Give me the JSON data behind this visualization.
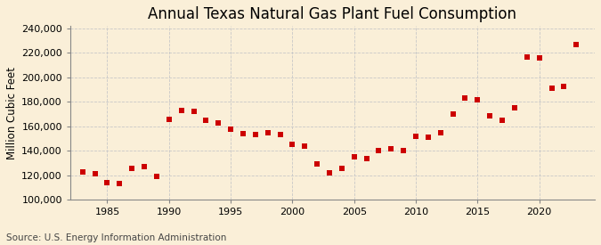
{
  "title": "Annual Texas Natural Gas Plant Fuel Consumption",
  "ylabel": "Million Cubic Feet",
  "source": "Source: U.S. Energy Information Administration",
  "background_color": "#faefd8",
  "plot_bg_color": "#faefd8",
  "marker_color": "#cc0000",
  "marker": "s",
  "marker_size": 4,
  "xlim": [
    1982,
    2024.5
  ],
  "ylim": [
    100000,
    242000
  ],
  "yticks": [
    100000,
    120000,
    140000,
    160000,
    180000,
    200000,
    220000,
    240000
  ],
  "xticks": [
    1985,
    1990,
    1995,
    2000,
    2005,
    2010,
    2015,
    2020
  ],
  "years": [
    1983,
    1984,
    1985,
    1986,
    1987,
    1988,
    1989,
    1990,
    1991,
    1992,
    1993,
    1994,
    1995,
    1996,
    1997,
    1998,
    1999,
    2000,
    2001,
    2002,
    2003,
    2004,
    2005,
    2006,
    2007,
    2008,
    2009,
    2010,
    2011,
    2012,
    2013,
    2014,
    2015,
    2016,
    2017,
    2018,
    2019,
    2020,
    2021,
    2022,
    2023
  ],
  "values": [
    123000,
    121000,
    114000,
    113000,
    126000,
    127000,
    119000,
    166000,
    173000,
    172000,
    165000,
    163000,
    158000,
    154000,
    153000,
    155000,
    153000,
    145000,
    144000,
    129000,
    122000,
    126000,
    135000,
    134000,
    140000,
    142000,
    140000,
    152000,
    151000,
    155000,
    170000,
    183000,
    182000,
    169000,
    165000,
    175000,
    217000,
    216000,
    191000,
    193000,
    227000
  ],
  "grid_color": "#c8c8c8",
  "grid_linestyle": "--",
  "title_fontsize": 12,
  "label_fontsize": 8.5,
  "tick_fontsize": 8,
  "source_fontsize": 7.5
}
